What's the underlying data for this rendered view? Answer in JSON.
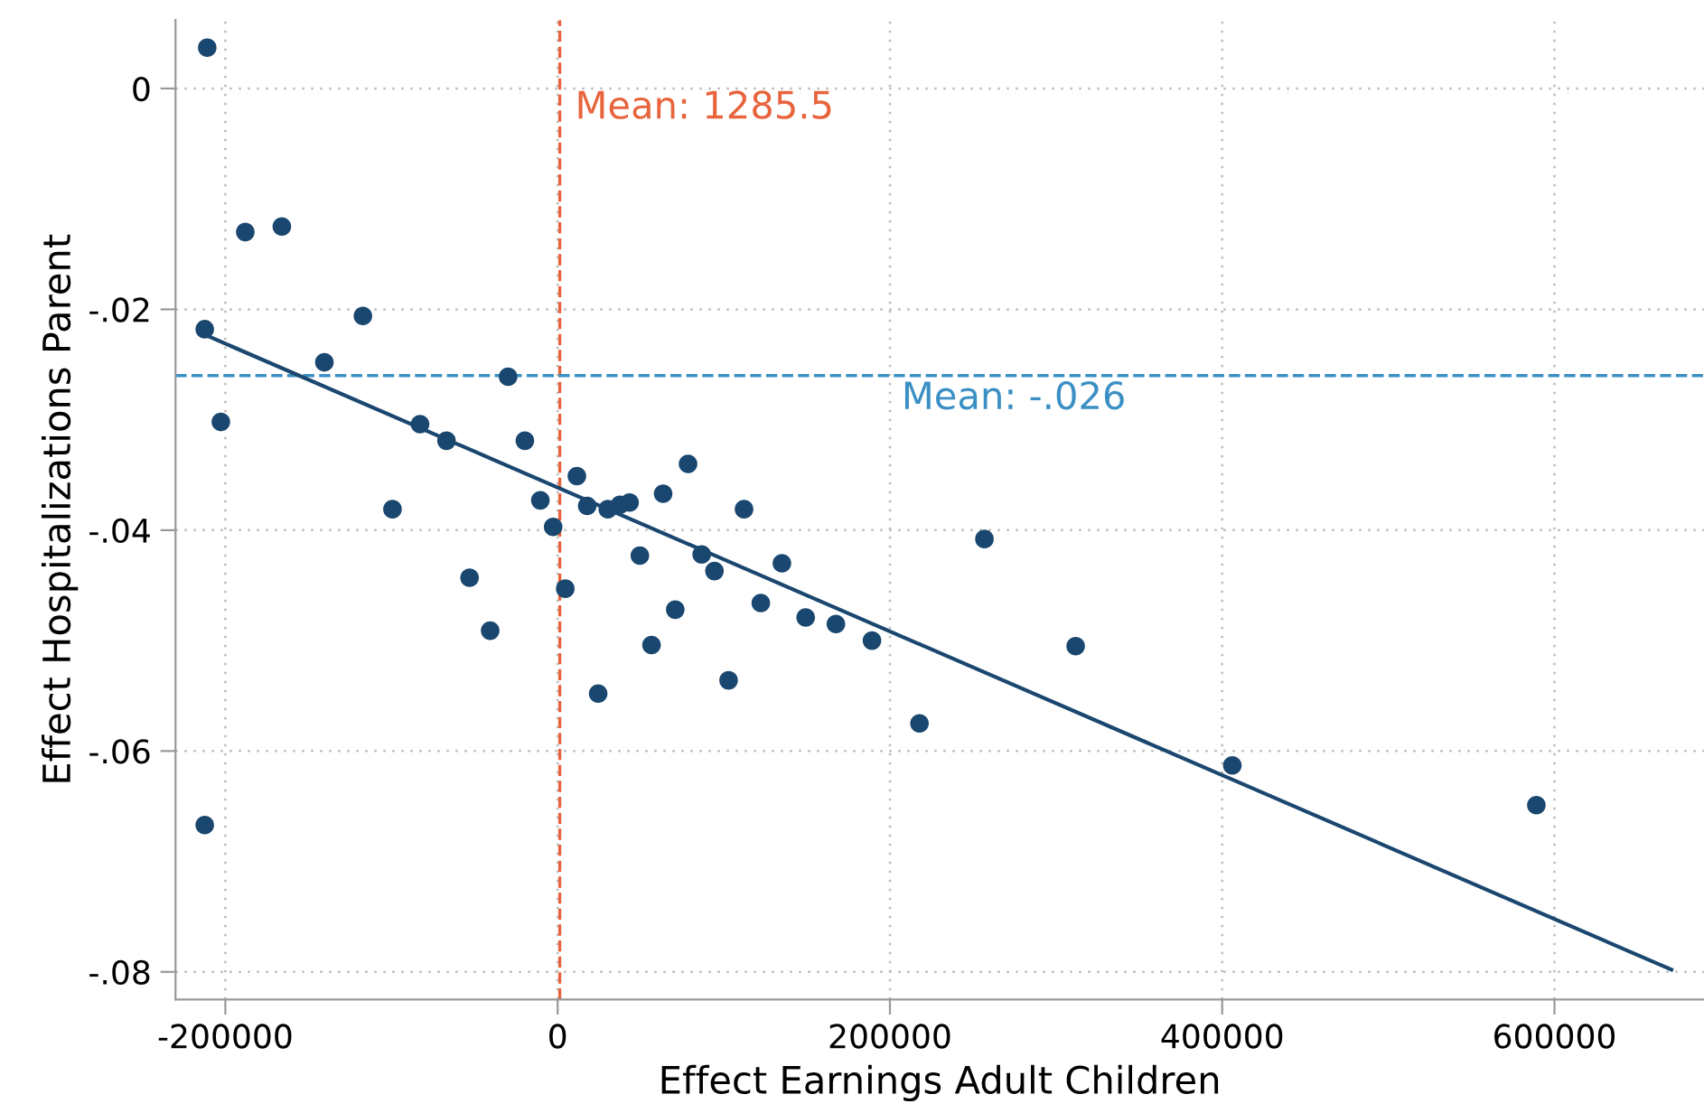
{
  "chart_data": {
    "type": "scatter",
    "xlabel": "Effect Earnings Adult Children",
    "ylabel": "Effect Hospitalizations Parent",
    "xlim": [
      -230000,
      690000
    ],
    "ylim": [
      -0.0825,
      0.0062
    ],
    "xticks": [
      -200000,
      0,
      200000,
      400000,
      600000
    ],
    "yticks": [
      {
        "value": 0,
        "label": "0"
      },
      {
        "value": -0.02,
        "label": "-.02"
      },
      {
        "value": -0.04,
        "label": "-.04"
      },
      {
        "value": -0.06,
        "label": "-.06"
      },
      {
        "value": -0.08,
        "label": "-.08"
      }
    ],
    "grid": true,
    "legend": false,
    "series": [
      {
        "marker": "circle",
        "color": "#1a476f",
        "x": [
          -210900,
          -188000,
          -166000,
          -212400,
          -117200,
          -140400,
          -29800,
          -202700,
          -82800,
          -66900,
          -19700,
          11600,
          78500,
          -10400,
          17800,
          30200,
          37500,
          43300,
          63500,
          112200,
          -99400,
          -2700,
          49500,
          86700,
          94400,
          135000,
          4600,
          -53000,
          -40600,
          70800,
          122300,
          149300,
          167500,
          189200,
          56500,
          102900,
          24400,
          217800,
          -212400,
          256900,
          311800,
          406100,
          589100
        ],
        "values": [
          0.0037,
          -0.013,
          -0.0125,
          -0.0218,
          -0.0206,
          -0.0248,
          -0.0261,
          -0.0302,
          -0.0304,
          -0.0319,
          -0.0319,
          -0.0351,
          -0.034,
          -0.0373,
          -0.0378,
          -0.0381,
          -0.0377,
          -0.0375,
          -0.0367,
          -0.0381,
          -0.0381,
          -0.0397,
          -0.0423,
          -0.0422,
          -0.0437,
          -0.043,
          -0.0453,
          -0.0443,
          -0.0491,
          -0.0472,
          -0.0466,
          -0.0479,
          -0.0485,
          -0.05,
          -0.0504,
          -0.0536,
          -0.0548,
          -0.0575,
          -0.0667,
          -0.0408,
          -0.0505,
          -0.0613,
          -0.0649
        ]
      },
      {
        "type": "line",
        "color": "#1a476f",
        "x": [
          -212400,
          670400
        ],
        "values": [
          -0.0223,
          -0.0798
        ],
        "line_style": "solid"
      }
    ],
    "ref_lines": [
      {
        "axis": "x",
        "value": 1285.5,
        "label": "Mean: 1285.5",
        "color": "#e8643c",
        "line_style": "dashed"
      },
      {
        "axis": "y",
        "value": -0.026,
        "label": "Mean: -.026",
        "color": "#3a8fc4",
        "line_style": "dashed"
      }
    ]
  }
}
